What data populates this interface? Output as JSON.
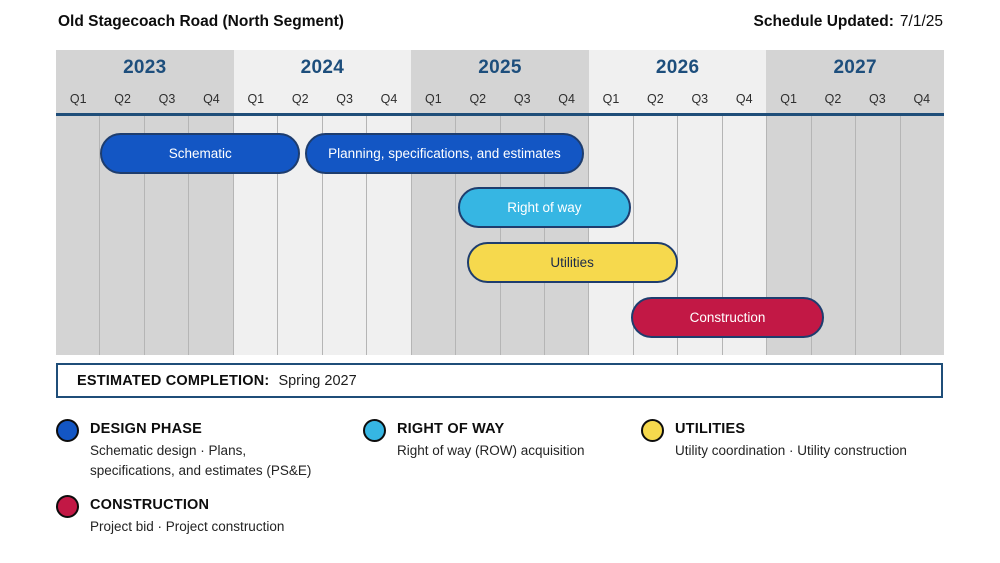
{
  "header": {
    "title": "Old Stagecoach Road (North Segment)",
    "updated_label": "Schedule Updated:",
    "updated_value": "7/1/25"
  },
  "chart_data": {
    "type": "gantt",
    "title": "Old Stagecoach Road (North Segment) project schedule",
    "years": [
      "2023",
      "2024",
      "2025",
      "2026",
      "2027"
    ],
    "quarter_labels": [
      "Q1",
      "Q2",
      "Q3",
      "Q4"
    ],
    "quarters_total": 20,
    "colors": {
      "band_dark": "#d4d4d4",
      "band_light": "#f0f0f0",
      "grid_line": "#b5b5b5",
      "axis_line": "#1f4e79",
      "year_text": "#1d4e7c",
      "bar_border": "#1e3d6e"
    },
    "phases": [
      {
        "name": "schematic",
        "label": "Schematic",
        "row": 0,
        "start_q": 1.0,
        "end_q": 5.5,
        "start": "2023 Q2",
        "end": "2024 Q2 (mid)",
        "fill": "#1356c4",
        "text": "#ffffff"
      },
      {
        "name": "planning",
        "label": "Planning, specifications, and estimates",
        "row": 0,
        "start_q": 5.6,
        "end_q": 11.9,
        "start": "2024 Q2 (mid)",
        "end": "2025 Q4",
        "fill": "#1356c4",
        "text": "#ffffff"
      },
      {
        "name": "right-of-way",
        "label": "Right of way",
        "row": 1,
        "start_q": 9.05,
        "end_q": 12.95,
        "start": "2025 Q2",
        "end": "2026 Q1",
        "fill": "#36b6e3",
        "text": "#ffffff"
      },
      {
        "name": "utilities",
        "label": "Utilities",
        "row": 2,
        "start_q": 9.25,
        "end_q": 14.0,
        "start": "2025 Q2",
        "end": "2026 Q2",
        "fill": "#f6d94d",
        "text": "#1b2a4a"
      },
      {
        "name": "construction",
        "label": "Construction",
        "row": 3,
        "start_q": 12.95,
        "end_q": 17.3,
        "start": "2026 Q2",
        "end": "2027 Q2 (mid)",
        "fill": "#c21845",
        "text": "#ffffff"
      }
    ]
  },
  "completion": {
    "label": "ESTIMATED COMPLETION:",
    "value": "Spring 2027"
  },
  "legend": [
    {
      "name": "design-phase",
      "color": "#1356c4",
      "title": "DESIGN PHASE",
      "description": "Schematic design  ·  Plans,\nspecifications,  and estimates (PS&E)"
    },
    {
      "name": "right-of-way",
      "color": "#36b6e3",
      "title": "RIGHT OF WAY",
      "description": "Right of way (ROW) acquisition"
    },
    {
      "name": "utilities",
      "color": "#f6d94d",
      "title": "UTILITIES",
      "description": "Utility coordination · Utility construction"
    },
    {
      "name": "construction",
      "color": "#c21845",
      "title": "CONSTRUCTION",
      "description": "Project bid  ·  Project construction"
    }
  ]
}
